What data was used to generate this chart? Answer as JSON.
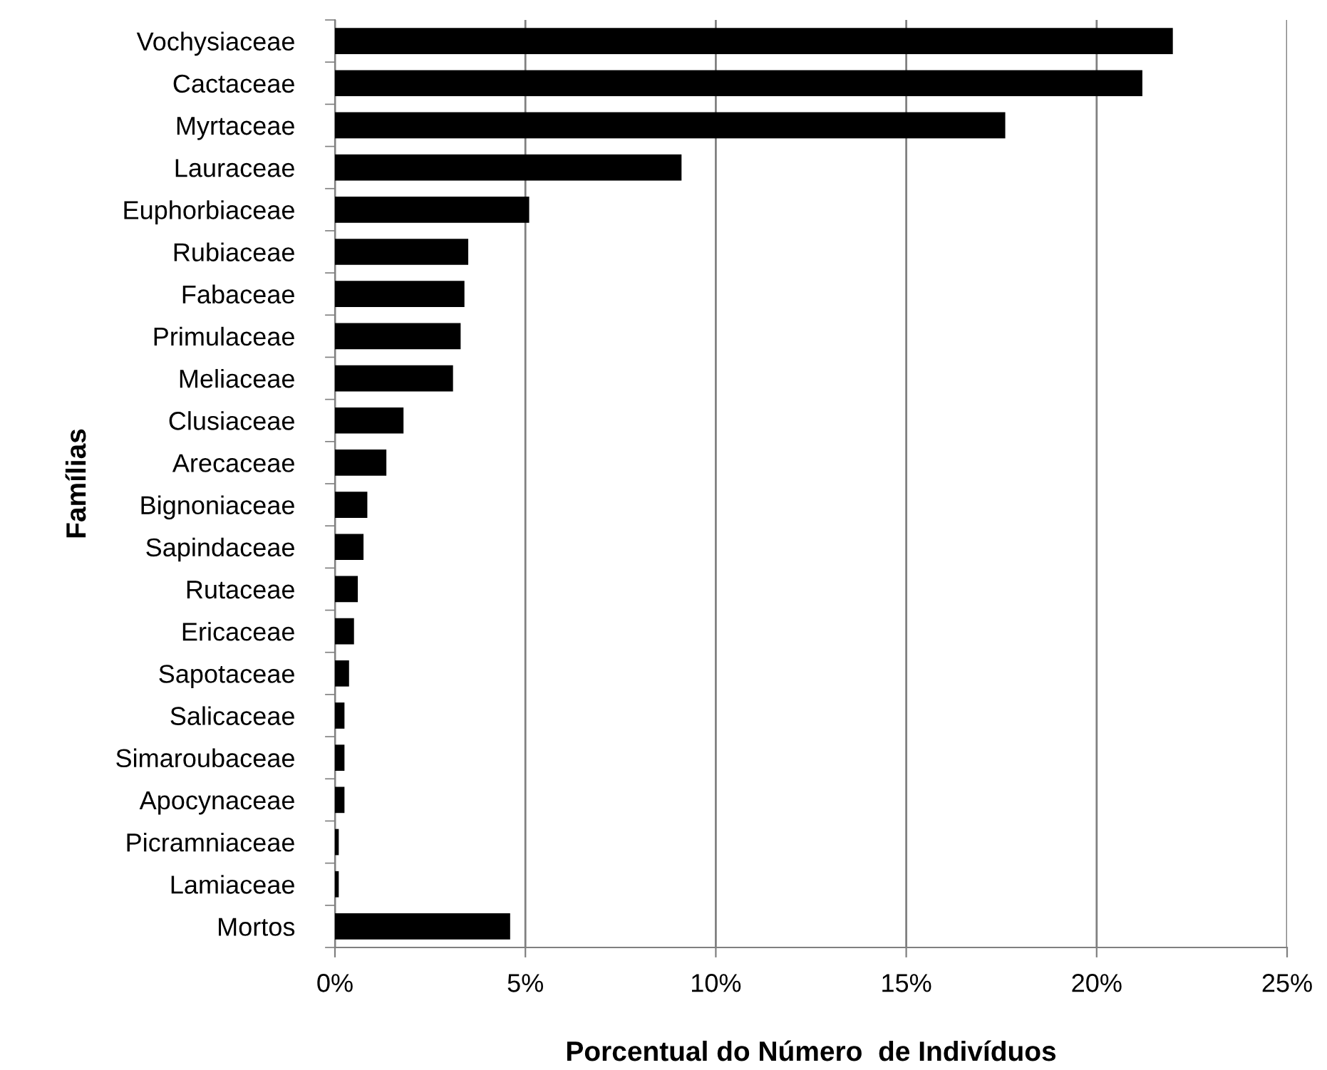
{
  "chart_data": {
    "type": "bar",
    "orientation": "horizontal",
    "xlabel": "Porcentual do Número  de Indivíduos",
    "ylabel": "Famílias",
    "categories": [
      "Vochysiaceae",
      "Cactaceae",
      "Myrtaceae",
      "Lauraceae",
      "Euphorbiaceae",
      "Rubiaceae",
      "Fabaceae",
      "Primulaceae",
      "Meliaceae",
      "Clusiaceae",
      "Arecaceae",
      "Bignoniaceae",
      "Sapindaceae",
      "Rutaceae",
      "Ericaceae",
      "Sapotaceae",
      "Salicaceae",
      "Simaroubaceae",
      "Apocynaceae",
      "Picramniaceae",
      "Lamiaceae",
      "Mortos"
    ],
    "values": [
      22.0,
      21.2,
      17.6,
      9.1,
      5.1,
      3.5,
      3.4,
      3.3,
      3.1,
      1.8,
      1.35,
      0.85,
      0.75,
      0.6,
      0.5,
      0.37,
      0.25,
      0.25,
      0.25,
      0.1,
      0.1,
      4.6
    ],
    "color": "#000000",
    "xlim": [
      0,
      25
    ],
    "xticks": [
      {
        "value": 0,
        "label": "0%"
      },
      {
        "value": 5,
        "label": "5%"
      },
      {
        "value": 10,
        "label": "10%"
      },
      {
        "value": 15,
        "label": "15%"
      },
      {
        "value": 20,
        "label": "20%"
      },
      {
        "value": 25,
        "label": "25%"
      }
    ],
    "grid": "x",
    "legend": false
  }
}
